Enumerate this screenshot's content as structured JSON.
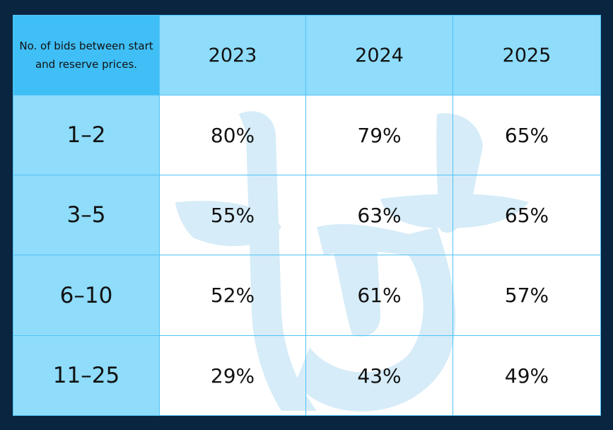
{
  "table": {
    "corner_label": "No. of bids between start and reserve prices.",
    "years": [
      "2023",
      "2024",
      "2025"
    ],
    "rows": [
      {
        "range": "1–2",
        "values": [
          "80%",
          "79%",
          "65%"
        ]
      },
      {
        "range": "3–5",
        "values": [
          "55%",
          "63%",
          "65%"
        ]
      },
      {
        "range": "6–10",
        "values": [
          "52%",
          "61%",
          "57%"
        ]
      },
      {
        "range": "11–25",
        "values": [
          "29%",
          "43%",
          "49%"
        ]
      }
    ]
  },
  "colors": {
    "page_background": "#0a2540",
    "corner_header": "#40bff7",
    "light_header": "#8fdcfb",
    "grid_line": "#4fc3f7",
    "watermark": "#d6ecf8"
  },
  "watermark_icon": "tt-logo-watermark"
}
